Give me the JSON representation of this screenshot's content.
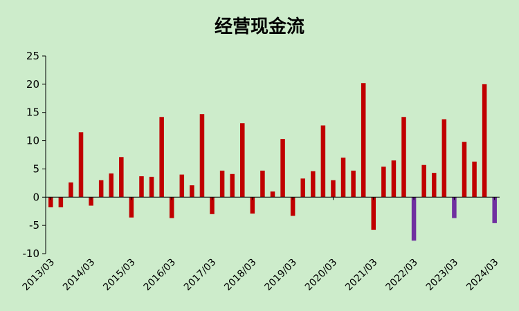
{
  "chart_data": {
    "type": "bar",
    "title": "经营现金流",
    "xlabel": "",
    "ylabel": "",
    "ylim": [
      -10,
      25
    ],
    "y_ticks": [
      25,
      20,
      15,
      10,
      5,
      0,
      -5,
      -10
    ],
    "x_tick_labels": [
      "2013/03",
      "2014/03",
      "2015/03",
      "2016/03",
      "2017/03",
      "2018/03",
      "2019/03",
      "2020/03",
      "2021/03",
      "2022/03",
      "2023/03",
      "2024/03"
    ],
    "grid": false,
    "colors": {
      "default": "#c00000",
      "highlight": "#7030a0"
    },
    "values": [
      -1.8,
      -1.8,
      2.6,
      11.5,
      -1.5,
      3.0,
      4.2,
      7.1,
      -3.6,
      3.7,
      3.6,
      14.2,
      -3.7,
      4.0,
      2.1,
      14.7,
      -3.0,
      4.7,
      4.1,
      13.1,
      -2.9,
      4.7,
      1.0,
      10.3,
      -3.3,
      3.3,
      4.6,
      12.7,
      3.0,
      7.0,
      4.7,
      20.2,
      -5.8,
      5.4,
      6.5,
      14.2,
      -7.7,
      5.7,
      4.3,
      13.8,
      -3.7,
      9.8,
      6.3,
      20.0,
      -4.6
    ],
    "highlight": [
      false,
      false,
      false,
      false,
      false,
      false,
      false,
      false,
      false,
      false,
      false,
      false,
      false,
      false,
      false,
      false,
      false,
      false,
      false,
      false,
      false,
      false,
      false,
      false,
      false,
      false,
      false,
      false,
      false,
      false,
      false,
      false,
      false,
      false,
      false,
      false,
      true,
      false,
      false,
      false,
      true,
      false,
      false,
      false,
      true
    ]
  }
}
